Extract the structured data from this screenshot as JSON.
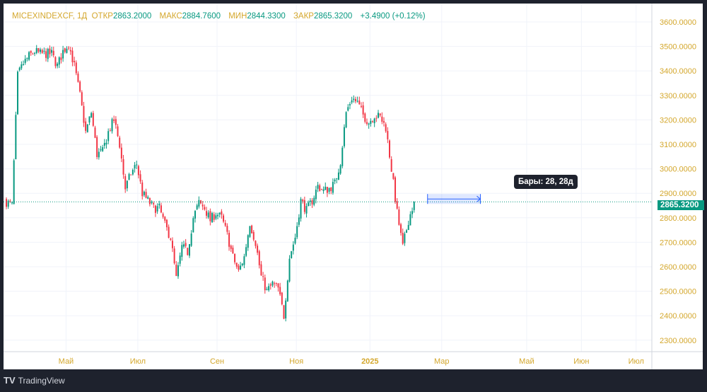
{
  "legend": {
    "symbol": "MICEXINDEXCF, 1Д",
    "open_label": "ОТКР",
    "open": "2863.2000",
    "high_label": "МАКС",
    "high": "2884.7600",
    "low_label": "МИН",
    "low": "2844.3300",
    "close_label": "ЗАКР",
    "close": "2865.3200",
    "change": "+3.4900 (+0.12%)"
  },
  "tooltip": "Бары: 28, 28д",
  "last_price": "2865.3200",
  "footer": {
    "logo_icon": "tradingview-logo",
    "brand": "TradingView"
  },
  "colors": {
    "up": "#089981",
    "down": "#f23645",
    "axis_text": "#d4a72c",
    "grid": "#f0f3fa",
    "measure": "#2962ff"
  },
  "chart_data": {
    "type": "candlestick",
    "title": "MICEXINDEXCF, 1Д",
    "ylim": [
      2250,
      3650
    ],
    "yticks": [
      2300,
      2400,
      2500,
      2600,
      2700,
      2800,
      2900,
      3000,
      3100,
      3200,
      3300,
      3400,
      3500,
      3600
    ],
    "ytick_labels": [
      "2300.0000",
      "2400.0000",
      "2500.0000",
      "2600.0000",
      "2700.0000",
      "2800.0000",
      "2900.0000",
      "3000.0000",
      "3100.0000",
      "3200.0000",
      "3300.0000",
      "3400.0000",
      "3500.0000",
      "3600.0000"
    ],
    "xticks": [
      {
        "label": "Май",
        "bar": 32
      },
      {
        "label": "Июл",
        "bar": 70
      },
      {
        "label": "Сен",
        "bar": 112
      },
      {
        "label": "Ноя",
        "bar": 154
      },
      {
        "label": "2025",
        "bar": 193
      },
      {
        "label": "Мар",
        "bar": 231
      },
      {
        "label": "Май",
        "bar": 276
      },
      {
        "label": "Июн",
        "bar": 305
      },
      {
        "label": "Июл",
        "bar": 334
      }
    ],
    "weekly_closes": [
      2870,
      2850,
      3380,
      3430,
      3460,
      3480,
      3470,
      3470,
      3470,
      3420,
      3480,
      3510,
      3420,
      3300,
      3150,
      3230,
      3060,
      3070,
      3150,
      3200,
      3100,
      2920,
      2980,
      3020,
      2900,
      2870,
      2840,
      2840,
      2770,
      2720,
      2550,
      2680,
      2660,
      2800,
      2860,
      2840,
      2790,
      2820,
      2800,
      2730,
      2640,
      2580,
      2640,
      2780,
      2700,
      2560,
      2500,
      2530,
      2510,
      2400,
      2640,
      2720,
      2870,
      2830,
      2870,
      2930,
      2910,
      2920,
      2940,
      3030,
      3230,
      3290,
      3270,
      3220,
      3190,
      3220,
      3210,
      3170,
      3000,
      2820,
      2680,
      2790,
      2865.32
    ],
    "last_close": 2865.32,
    "measure_bars": 28
  }
}
